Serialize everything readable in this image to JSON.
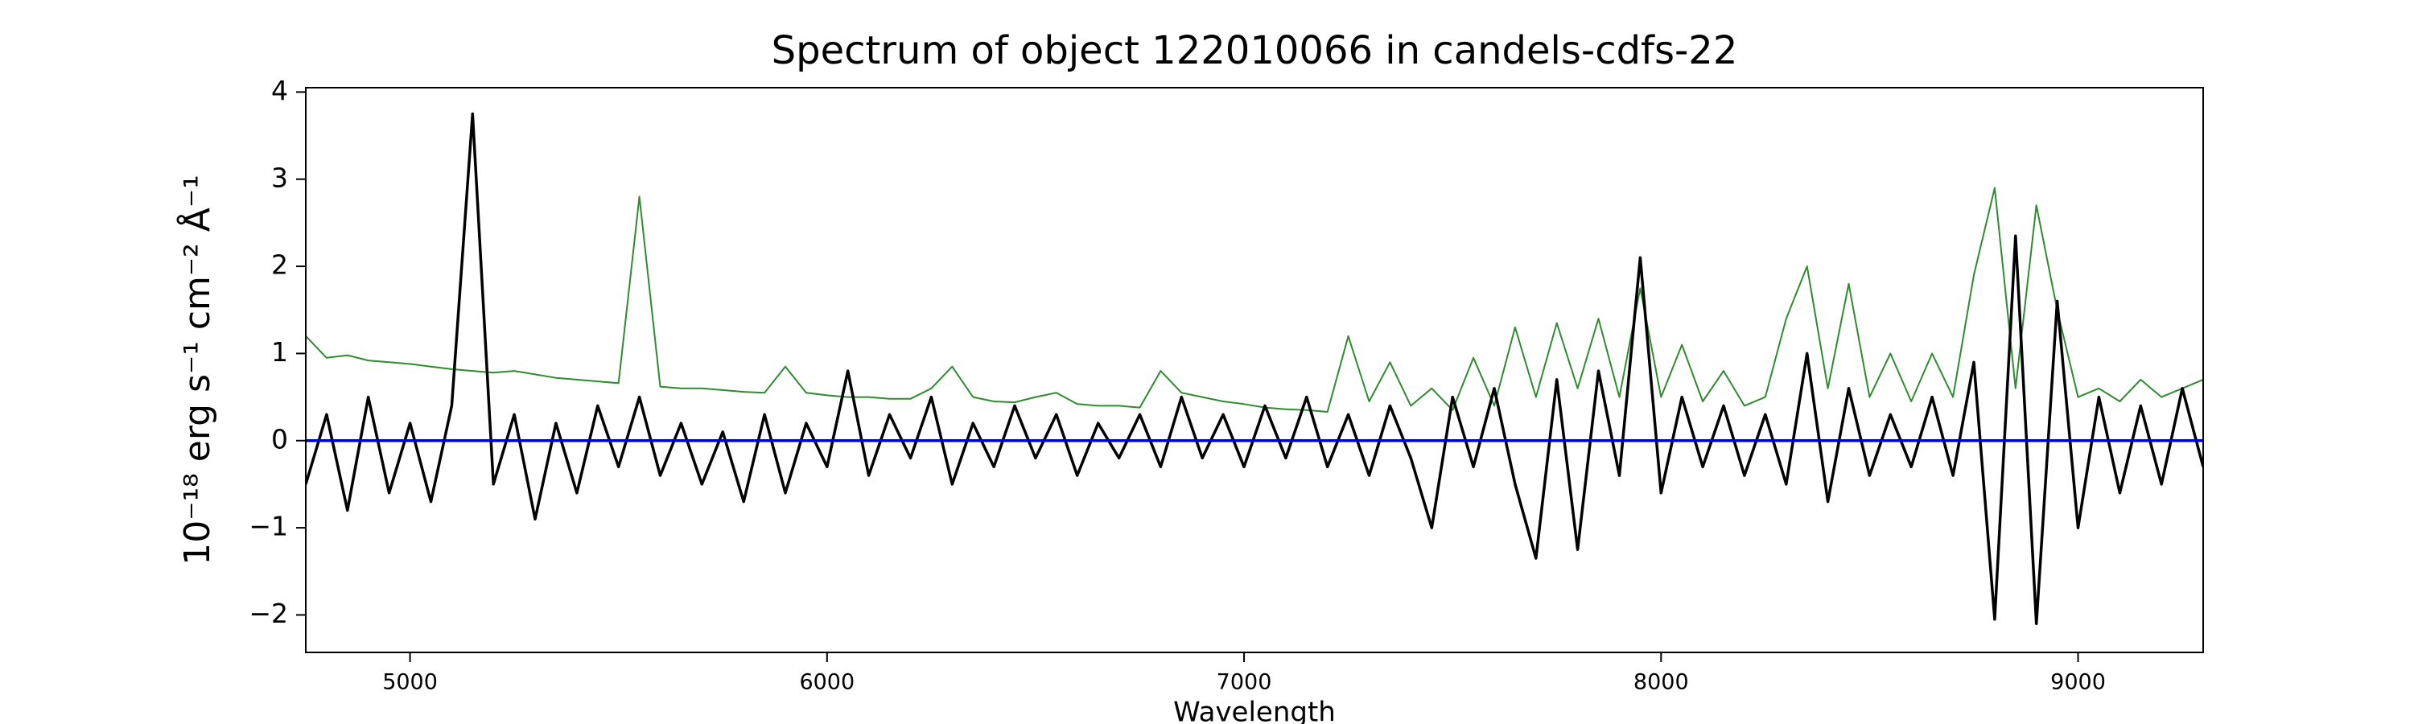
{
  "chart_data": {
    "type": "line",
    "title": "Spectrum of object 122010066 in candels-cdfs-22",
    "x_label": "Wavelength",
    "y_label": "10⁻¹⁸ erg s⁻¹ cm⁻² Å⁻¹",
    "x": [
      4750,
      4800,
      4850,
      4900,
      4950,
      5000,
      5050,
      5100,
      5150,
      5200,
      5250,
      5300,
      5350,
      5400,
      5450,
      5500,
      5550,
      5600,
      5650,
      5700,
      5750,
      5800,
      5850,
      5900,
      5950,
      6000,
      6050,
      6100,
      6150,
      6200,
      6250,
      6300,
      6350,
      6400,
      6450,
      6500,
      6550,
      6600,
      6650,
      6700,
      6750,
      6800,
      6850,
      6900,
      6950,
      7000,
      7050,
      7100,
      7150,
      7200,
      7250,
      7300,
      7350,
      7400,
      7450,
      7500,
      7550,
      7600,
      7650,
      7700,
      7750,
      7800,
      7850,
      7900,
      7950,
      8000,
      8050,
      8100,
      8150,
      8200,
      8250,
      8300,
      8350,
      8400,
      8450,
      8500,
      8550,
      8600,
      8650,
      8700,
      8750,
      8800,
      8850,
      8900,
      8950,
      9000,
      9050,
      9100,
      9150,
      9200,
      9250,
      9300
    ],
    "series": [
      {
        "color": "#2e8b2e",
        "values": [
          1.2,
          0.95,
          0.98,
          0.92,
          0.9,
          0.88,
          0.85,
          0.82,
          0.8,
          0.78,
          0.8,
          0.76,
          0.72,
          0.7,
          0.68,
          0.66,
          2.8,
          0.62,
          0.6,
          0.6,
          0.58,
          0.56,
          0.55,
          0.85,
          0.55,
          0.52,
          0.5,
          0.5,
          0.48,
          0.48,
          0.6,
          0.85,
          0.5,
          0.45,
          0.44,
          0.5,
          0.55,
          0.42,
          0.4,
          0.4,
          0.38,
          0.8,
          0.55,
          0.5,
          0.45,
          0.42,
          0.38,
          0.36,
          0.35,
          0.33,
          1.2,
          0.45,
          0.9,
          0.4,
          0.6,
          0.35,
          0.95,
          0.4,
          1.3,
          0.5,
          1.35,
          0.6,
          1.4,
          0.5,
          1.75,
          0.5,
          1.1,
          0.45,
          0.8,
          0.4,
          0.5,
          1.4,
          2.0,
          0.6,
          1.8,
          0.5,
          1.0,
          0.45,
          1.0,
          0.5,
          1.9,
          2.9,
          0.6,
          2.7,
          1.5,
          0.5,
          0.6,
          0.45,
          0.7,
          0.5,
          0.6,
          0.7
        ]
      },
      {
        "color": "#000000",
        "values": [
          -0.5,
          0.3,
          -0.8,
          0.5,
          -0.6,
          0.2,
          -0.7,
          0.4,
          3.75,
          -0.5,
          0.3,
          -0.9,
          0.2,
          -0.6,
          0.4,
          -0.3,
          0.5,
          -0.4,
          0.2,
          -0.5,
          0.1,
          -0.7,
          0.3,
          -0.6,
          0.2,
          -0.3,
          0.8,
          -0.4,
          0.3,
          -0.2,
          0.5,
          -0.5,
          0.2,
          -0.3,
          0.4,
          -0.2,
          0.3,
          -0.4,
          0.2,
          -0.2,
          0.3,
          -0.3,
          0.5,
          -0.2,
          0.3,
          -0.3,
          0.4,
          -0.2,
          0.5,
          -0.3,
          0.3,
          -0.4,
          0.4,
          -0.2,
          -1.0,
          0.5,
          -0.3,
          0.6,
          -0.5,
          -1.35,
          0.7,
          -1.25,
          0.8,
          -0.4,
          2.1,
          -0.6,
          0.5,
          -0.3,
          0.4,
          -0.4,
          0.3,
          -0.5,
          1.0,
          -0.7,
          0.6,
          -0.4,
          0.3,
          -0.3,
          0.5,
          -0.4,
          0.9,
          -2.05,
          2.35,
          -2.1,
          1.6,
          -1.0,
          0.5,
          -0.6,
          0.4,
          -0.5,
          0.6,
          -0.3
        ]
      },
      {
        "color": "#0000cc",
        "values": [
          0,
          0,
          0,
          0,
          0,
          0,
          0,
          0,
          0,
          0,
          0,
          0,
          0,
          0,
          0,
          0,
          0,
          0,
          0,
          0,
          0,
          0,
          0,
          0,
          0,
          0,
          0,
          0,
          0,
          0,
          0,
          0,
          0,
          0,
          0,
          0,
          0,
          0,
          0,
          0,
          0,
          0,
          0,
          0,
          0,
          0,
          0,
          0,
          0,
          0,
          0,
          0,
          0,
          0,
          0,
          0,
          0,
          0,
          0,
          0,
          0,
          0,
          0,
          0,
          0,
          0,
          0,
          0,
          0,
          0,
          0,
          0,
          0,
          0,
          0,
          0,
          0,
          0,
          0,
          0,
          0,
          0,
          0,
          0,
          0,
          0,
          0,
          0,
          0,
          0,
          0,
          0
        ]
      }
    ],
    "xlim": [
      4750,
      9300
    ],
    "xticks": [
      5000,
      6000,
      7000,
      8000,
      9000
    ],
    "ylim": [
      -2.43,
      4.05
    ],
    "yticks": [
      {
        "value": -2,
        "label": "−2"
      },
      {
        "value": -1,
        "label": "−1"
      },
      0,
      1,
      2,
      3,
      4
    ],
    "grid": false
  }
}
